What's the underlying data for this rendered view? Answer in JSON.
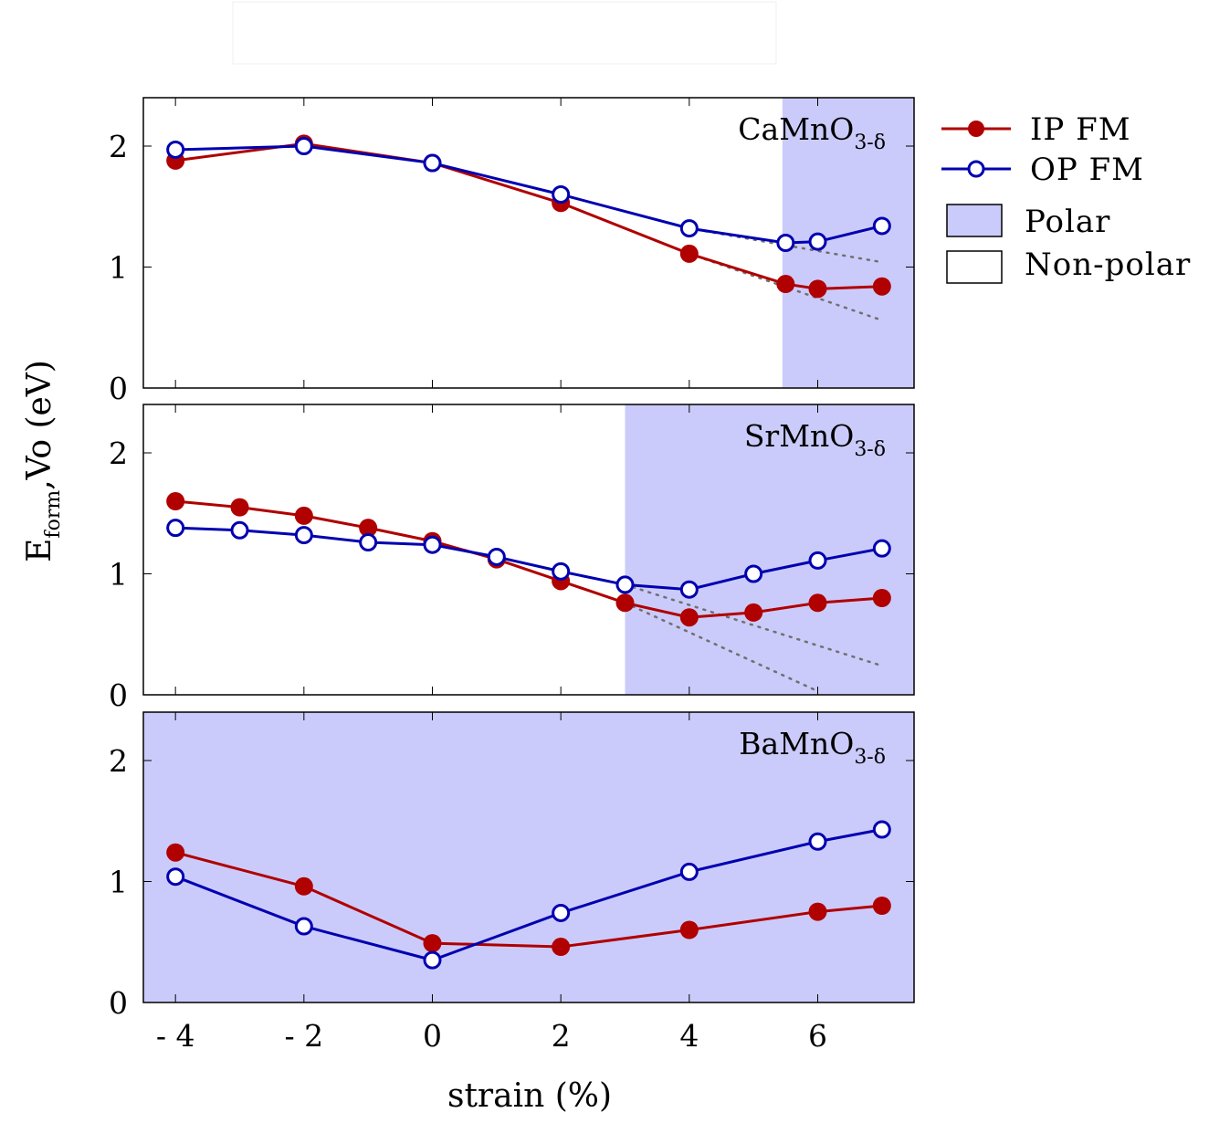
{
  "colors": {
    "polar_fill": "#cbcbfb",
    "ip_fm": "#b00000",
    "op_fm": "#0000b0",
    "guide": "#707070"
  },
  "axes": {
    "xlabel": "strain (%)",
    "ylabel_main": "E",
    "ylabel_sub": "form",
    "ylabel_tail": ",Vo (eV)",
    "x_ticks": [
      "- 4",
      "- 2",
      "0",
      "2",
      "4",
      "6"
    ],
    "y_ticks": [
      "0",
      "1",
      "2"
    ]
  },
  "legend": {
    "ip_fm": "IP FM",
    "op_fm": "OP FM",
    "polar": "Polar",
    "non_polar": "Non-polar"
  },
  "chart_data": [
    {
      "type": "line",
      "panel_label": "CaMnO",
      "panel_label_sub": "3-δ",
      "xlim": [
        -4.5,
        7.5
      ],
      "ylim": [
        0,
        2.4
      ],
      "polar_region": [
        5.45,
        7.5
      ],
      "series": [
        {
          "name": "IP FM",
          "marker": "filled",
          "x": [
            -4,
            -2,
            0,
            2,
            4,
            5.5,
            6,
            7
          ],
          "y": [
            1.88,
            2.02,
            1.86,
            1.53,
            1.11,
            0.86,
            0.82,
            0.84
          ]
        },
        {
          "name": "OP FM",
          "marker": "open",
          "x": [
            -4,
            -2,
            0,
            2,
            4,
            5.5,
            6,
            7
          ],
          "y": [
            1.97,
            2.0,
            1.86,
            1.6,
            1.32,
            1.2,
            1.21,
            1.34
          ]
        }
      ],
      "guides": [
        {
          "x": [
            4,
            7
          ],
          "y": [
            1.11,
            0.56
          ]
        },
        {
          "x": [
            4,
            7
          ],
          "y": [
            1.32,
            1.04
          ]
        }
      ]
    },
    {
      "type": "line",
      "panel_label": "SrMnO",
      "panel_label_sub": "3-δ",
      "xlim": [
        -4.5,
        7.5
      ],
      "ylim": [
        0,
        2.4
      ],
      "polar_region": [
        3,
        7.5
      ],
      "series": [
        {
          "name": "IP FM",
          "marker": "filled",
          "x": [
            -4,
            -3,
            -2,
            -1,
            0,
            1,
            2,
            3,
            4,
            5,
            6,
            7
          ],
          "y": [
            1.6,
            1.55,
            1.48,
            1.38,
            1.27,
            1.12,
            0.94,
            0.76,
            0.64,
            0.68,
            0.76,
            0.8
          ]
        },
        {
          "name": "OP FM",
          "marker": "open",
          "x": [
            -4,
            -3,
            -2,
            -1,
            0,
            1,
            2,
            3,
            4,
            5,
            6,
            7
          ],
          "y": [
            1.38,
            1.36,
            1.32,
            1.26,
            1.24,
            1.14,
            1.02,
            0.91,
            0.87,
            1.0,
            1.11,
            1.21
          ]
        }
      ],
      "guides": [
        {
          "x": [
            3,
            6
          ],
          "y": [
            0.76,
            0.03
          ]
        },
        {
          "x": [
            3,
            7
          ],
          "y": [
            0.91,
            0.24
          ]
        }
      ]
    },
    {
      "type": "line",
      "panel_label": "BaMnO",
      "panel_label_sub": "3-δ",
      "xlim": [
        -4.5,
        7.5
      ],
      "ylim": [
        0,
        2.4
      ],
      "polar_region": [
        -4.5,
        7.5
      ],
      "series": [
        {
          "name": "IP FM",
          "marker": "filled",
          "x": [
            -4,
            -2,
            0,
            2,
            4,
            6,
            7
          ],
          "y": [
            1.24,
            0.96,
            0.49,
            0.46,
            0.6,
            0.75,
            0.8
          ]
        },
        {
          "name": "OP FM",
          "marker": "open",
          "x": [
            -4,
            -2,
            0,
            2,
            4,
            6,
            7
          ],
          "y": [
            1.04,
            0.63,
            0.35,
            0.74,
            1.08,
            1.33,
            1.43
          ]
        }
      ],
      "guides": []
    }
  ]
}
